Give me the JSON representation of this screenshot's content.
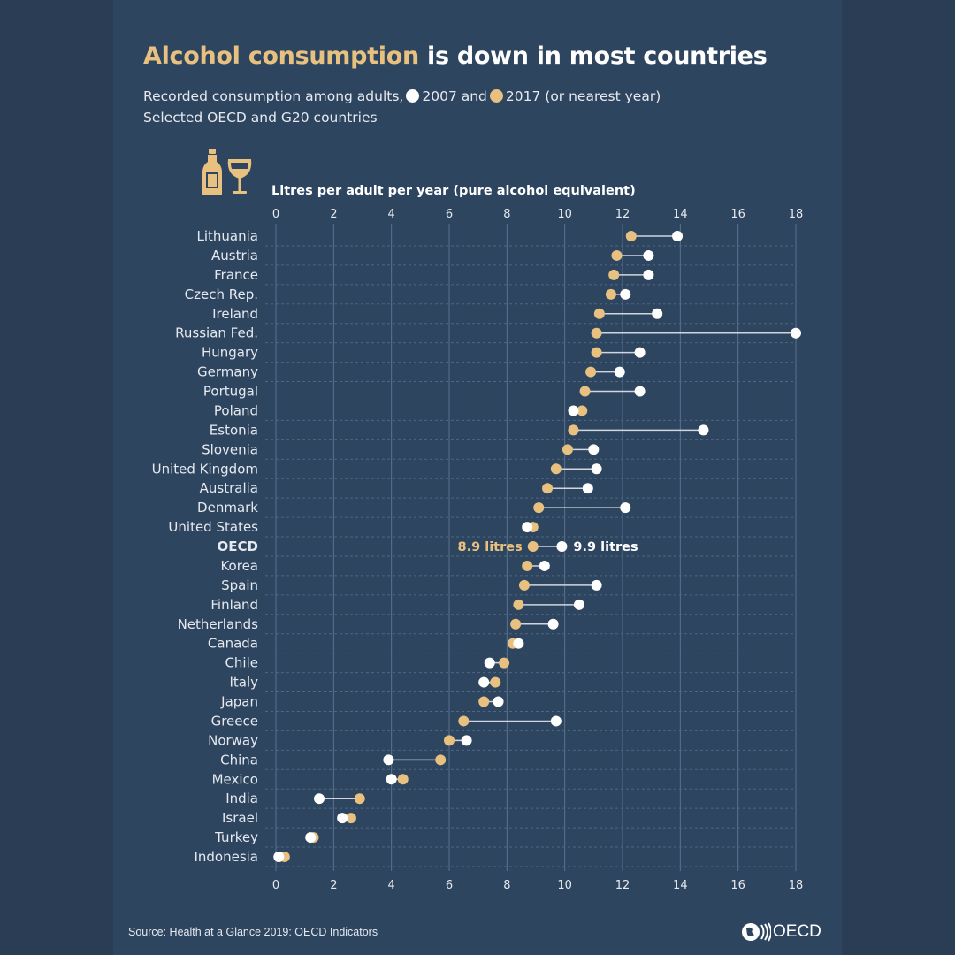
{
  "title": {
    "highlight": "Alcohol consumption",
    "rest": " is down in most countries"
  },
  "subtitle": {
    "line1_a": "Recorded consumption among adults,",
    "line1_b": "2007 and",
    "line1_c": "2017 (or nearest year)",
    "line2": "Selected OECD and G20 countries"
  },
  "source": "Source: Health at a Glance 2019: OECD Indicators",
  "logo_text": "OECD",
  "icons": [
    "bottle-icon",
    "wine-glass-icon"
  ],
  "colors": {
    "y2007": "#ffffff",
    "y2017": "#e8c07f",
    "background": "#2e4560"
  },
  "chart_data": {
    "type": "dumbbell",
    "xlabel": "Litres per adult per year (pure alcohol equivalent)",
    "xlim": [
      0,
      18
    ],
    "xticks": [
      "0",
      "2",
      "4",
      "6",
      "8",
      "10",
      "12",
      "14",
      "16",
      "18"
    ],
    "grid": true,
    "series_names": [
      "2007",
      "2017"
    ],
    "categories": [
      "Lithuania",
      "Austria",
      "France",
      "Czech Rep.",
      "Ireland",
      "Russian Fed.",
      "Hungary",
      "Germany",
      "Portugal",
      "Poland",
      "Estonia",
      "Slovenia",
      "United Kingdom",
      "Australia",
      "Denmark",
      "United States",
      "OECD",
      "Korea",
      "Spain",
      "Finland",
      "Netherlands",
      "Canada",
      "Chile",
      "Italy",
      "Japan",
      "Greece",
      "Norway",
      "China",
      "Mexico",
      "India",
      "Israel",
      "Turkey",
      "Indonesia"
    ],
    "y2007": [
      13.9,
      12.9,
      12.9,
      12.1,
      13.2,
      18.0,
      12.6,
      11.9,
      12.6,
      10.3,
      14.8,
      11.0,
      11.1,
      10.8,
      12.1,
      8.7,
      9.9,
      9.3,
      11.1,
      10.5,
      9.6,
      8.4,
      7.4,
      7.2,
      7.7,
      9.7,
      6.6,
      3.9,
      4.0,
      1.5,
      2.3,
      1.2,
      0.1
    ],
    "y2017": [
      12.3,
      11.8,
      11.7,
      11.6,
      11.2,
      11.1,
      11.1,
      10.9,
      10.7,
      10.6,
      10.3,
      10.1,
      9.7,
      9.4,
      9.1,
      8.9,
      8.9,
      8.7,
      8.6,
      8.4,
      8.3,
      8.2,
      7.9,
      7.6,
      7.2,
      6.5,
      6.0,
      5.7,
      4.4,
      2.9,
      2.6,
      1.3,
      0.3
    ],
    "highlight": "OECD",
    "annotations": {
      "oecd_2017": "8.9 litres",
      "oecd_2007": "9.9 litres"
    }
  }
}
